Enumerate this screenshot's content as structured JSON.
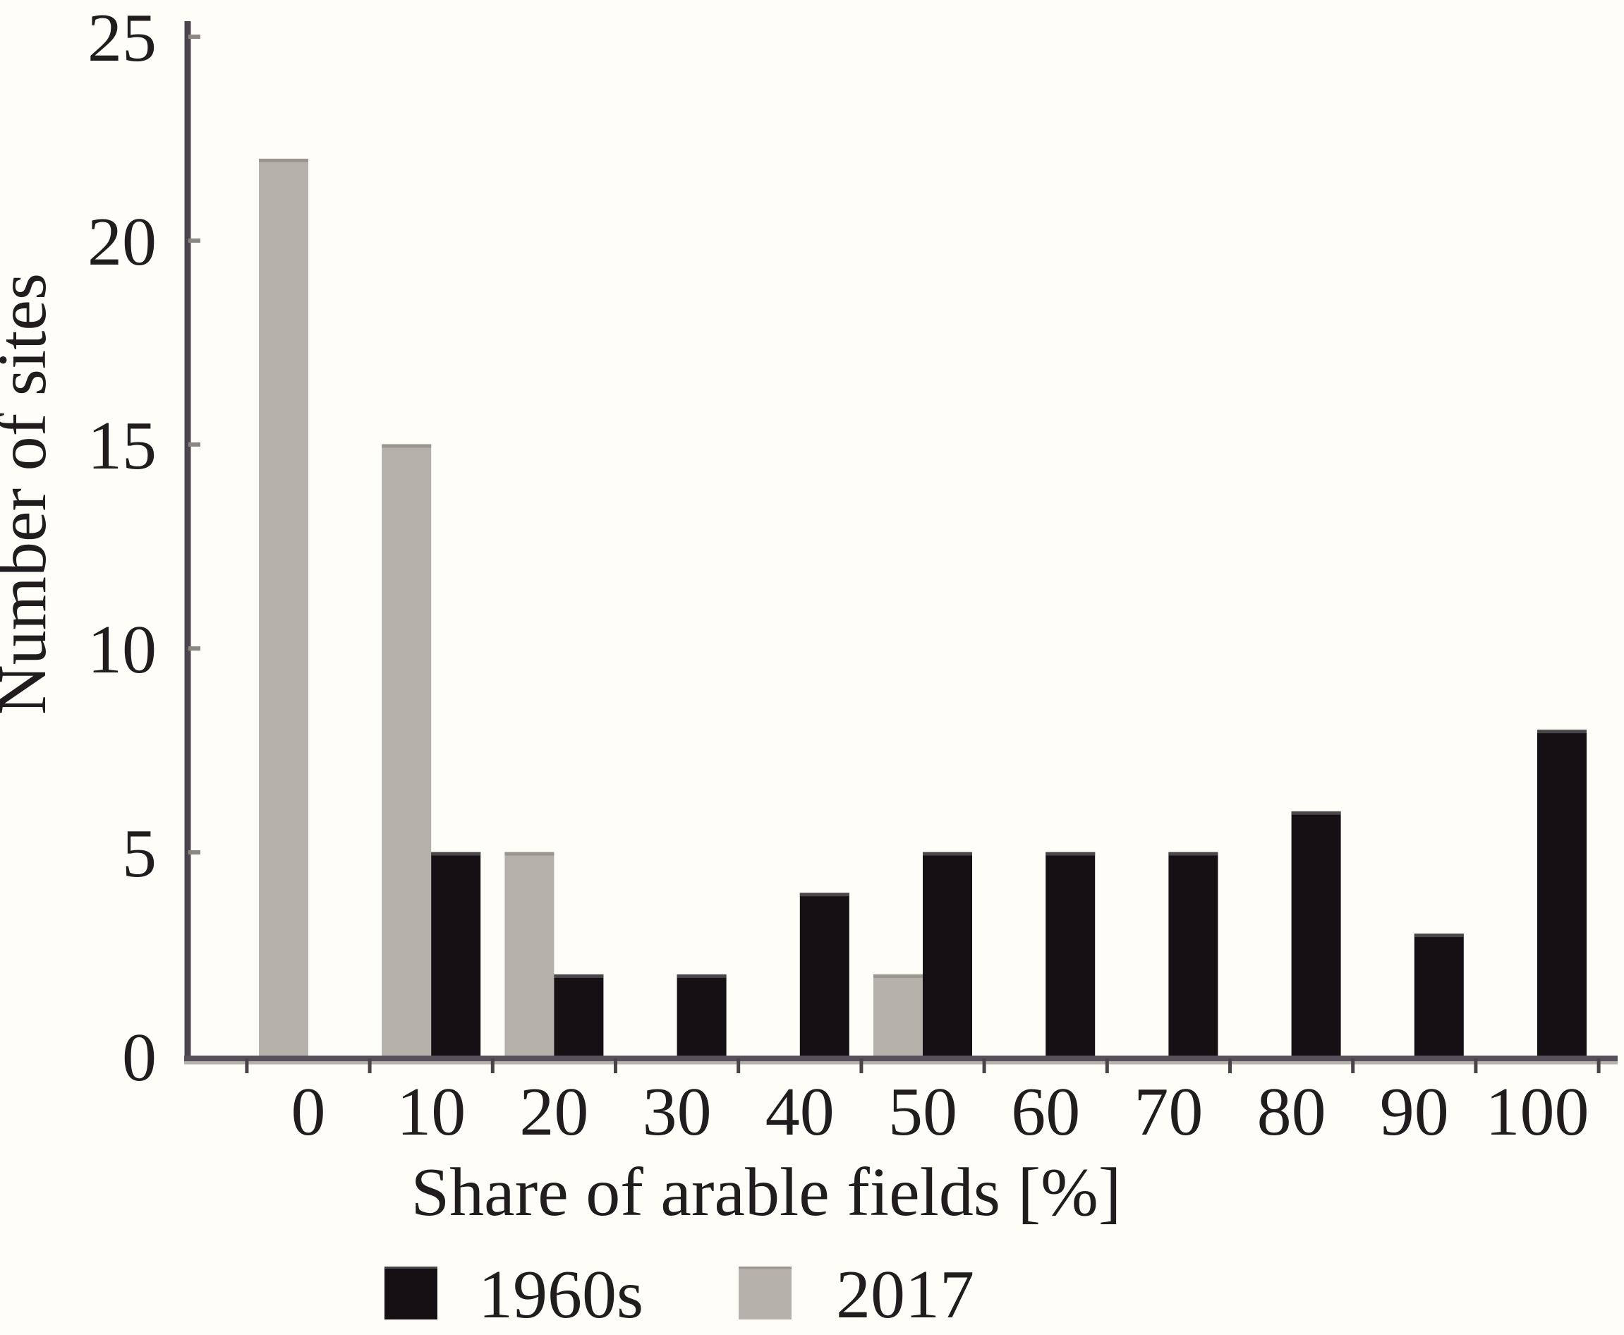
{
  "figure": {
    "background": "#fffdf8",
    "axis_color": "#4b4550",
    "baseline_color": "#56515a",
    "baseline_shadow_color": "#b8b2ac",
    "y_tick_color": "#8d8781",
    "x_tick_color": "#4a4448",
    "text_color": "#211d1f"
  },
  "chart_data": {
    "type": "bar",
    "title": "",
    "xlabel": "Share of arable fields [%]",
    "ylabel": "Number of sites",
    "categories": [
      "0",
      "10",
      "20",
      "30",
      "40",
      "50",
      "60",
      "70",
      "80",
      "90",
      "100"
    ],
    "series": [
      {
        "name": "1960s",
        "color": "#151013",
        "top_edge_color": "#4b4649",
        "values": [
          0,
          5,
          2,
          2,
          4,
          5,
          5,
          5,
          6,
          3,
          8
        ]
      },
      {
        "name": "2017",
        "color": "#b5b0a9",
        "top_edge_color": "#9a958e",
        "values": [
          22,
          15,
          5,
          0,
          0,
          2,
          0,
          0,
          0,
          0,
          0
        ]
      }
    ],
    "group_left_to_right": [
      "2017",
      "1960s"
    ],
    "ylim": [
      0,
      25
    ],
    "yticks": [
      0,
      5,
      10,
      15,
      20,
      25
    ],
    "grid": false,
    "legend_position": "bottom"
  }
}
